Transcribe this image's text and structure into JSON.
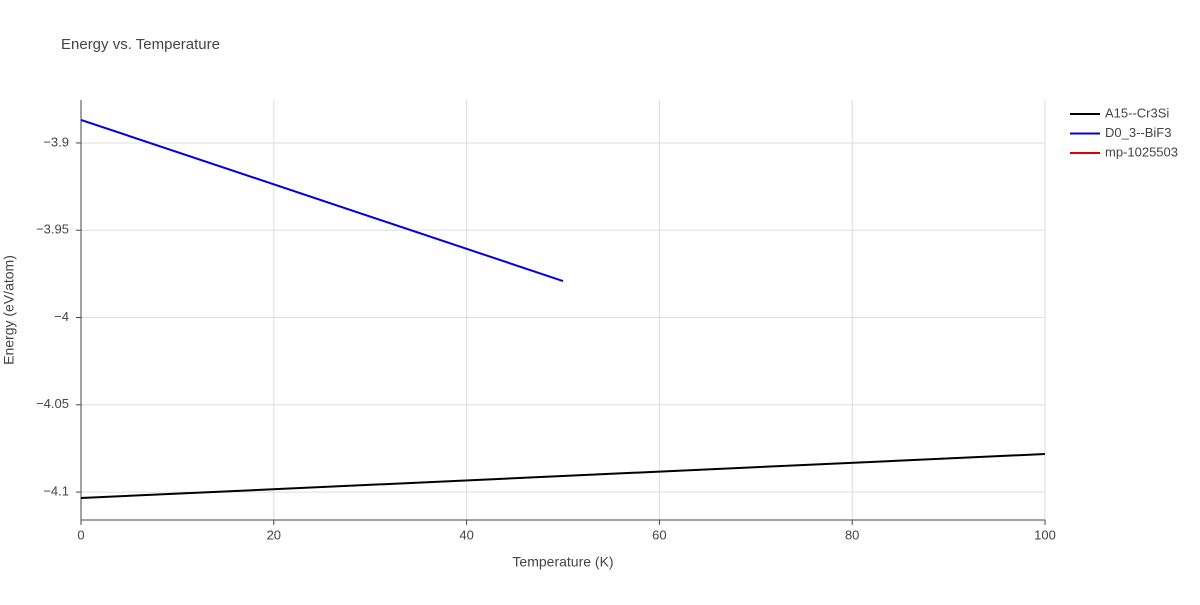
{
  "chart_data": {
    "type": "line",
    "title": "Energy vs. Temperature",
    "x_label": "Temperature (K)",
    "y_label": "Energy (eV/atom)",
    "series": [
      {
        "name": "A15--Cr3Si",
        "color": "#000000",
        "x": [
          0,
          100
        ],
        "values": [
          -4.1034,
          -4.0782
        ]
      },
      {
        "name": "D0_3--BiF3",
        "color": "#0000dd",
        "x": [
          0,
          50
        ],
        "values": [
          -3.8868,
          -3.9791
        ]
      },
      {
        "name": "mp-1025503",
        "color": "#dd0000",
        "x": [],
        "values": []
      }
    ],
    "xlim": [
      0,
      100
    ],
    "xticks": [
      0,
      20,
      40,
      60,
      80,
      100
    ],
    "ylim": [
      -4.116,
      -3.8754
    ],
    "yticks": [
      {
        "value": -3.9,
        "label": "−3.9"
      },
      {
        "value": -3.95,
        "label": "−3.95"
      },
      {
        "value": -4,
        "label": "−4"
      },
      {
        "value": -4.05,
        "label": "−4.05"
      },
      {
        "value": -4.1,
        "label": "−4.1"
      }
    ],
    "grid": true,
    "legend": "right"
  }
}
